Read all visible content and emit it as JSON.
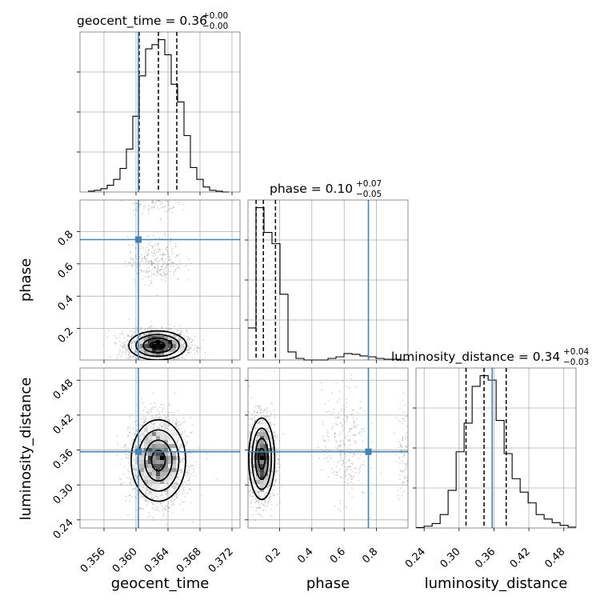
{
  "colors": {
    "truth": "#4682b4",
    "hist": "#000000",
    "grid": "#b0b0b0",
    "scatter": "#808080",
    "frame": "#808080"
  },
  "chart_data": {
    "type": "corner",
    "parameters": [
      "geocent_time",
      "phase",
      "luminosity_distance"
    ],
    "axis_labels": {
      "geocent_time": "geocent_time",
      "phase": "phase",
      "luminosity_distance": "luminosity_distance"
    },
    "titles": {
      "geocent_time": {
        "label": "geocent_time = 0.36",
        "plus": "+0.00",
        "minus": "−0.00"
      },
      "phase": {
        "label": "phase = 0.10",
        "plus": "+0.07",
        "minus": "−0.05"
      },
      "luminosity_distance": {
        "label": "luminosity_distance = 0.34",
        "plus": "+0.04",
        "minus": "−0.03"
      }
    },
    "ranges": {
      "geocent_time": [
        0.353,
        0.373
      ],
      "phase": [
        0.005,
        0.995
      ],
      "luminosity_distance": [
        0.226,
        0.501
      ]
    },
    "ticks": {
      "geocent_time": [
        "0.356",
        "0.360",
        "0.364",
        "0.368",
        "0.372"
      ],
      "phase_y": [
        "0.2",
        "0.4",
        "0.6",
        "0.8"
      ],
      "phase_x": [
        "0.2",
        "0.4",
        "0.6",
        "0.8"
      ],
      "luminosity_distance": [
        "0.24",
        "0.30",
        "0.36",
        "0.42",
        "0.48"
      ]
    },
    "tick_values": {
      "geocent_time": [
        0.356,
        0.36,
        0.364,
        0.368,
        0.372
      ],
      "phase": [
        0.2,
        0.4,
        0.6,
        0.8
      ],
      "luminosity_distance": [
        0.24,
        0.3,
        0.36,
        0.42,
        0.48
      ]
    },
    "truths": {
      "geocent_time": 0.3603,
      "phase": 0.75,
      "luminosity_distance": 0.357
    },
    "quantiles": {
      "geocent_time": [
        0.3604,
        0.3628,
        0.3651
      ],
      "phase": [
        0.055,
        0.1,
        0.175
      ],
      "luminosity_distance": [
        0.312,
        0.343,
        0.381
      ]
    },
    "histograms": {
      "geocent_time": {
        "edges": [
          0.354,
          0.3548,
          0.3556,
          0.3564,
          0.3572,
          0.358,
          0.3588,
          0.3596,
          0.3604,
          0.3612,
          0.362,
          0.3628,
          0.3636,
          0.3644,
          0.3652,
          0.366,
          0.3668,
          0.3676,
          0.3684,
          0.3692,
          0.37,
          0.3708,
          0.3716
        ],
        "counts": [
          1,
          2,
          4,
          8,
          15,
          28,
          51,
          90,
          138,
          170,
          175,
          181,
          163,
          128,
          107,
          67,
          29,
          15,
          6,
          2,
          1,
          0
        ]
      },
      "phase": {
        "edges": [
          0.005,
          0.0545,
          0.104,
          0.1535,
          0.203,
          0.2525,
          0.302,
          0.3515,
          0.401,
          0.4505,
          0.5,
          0.5495,
          0.599,
          0.6485,
          0.698,
          0.7475,
          0.797,
          0.8465,
          0.896,
          0.9455,
          0.995
        ],
        "counts": [
          40,
          190,
          159,
          145,
          82,
          10,
          2,
          0,
          0,
          0,
          2,
          4,
          8,
          7,
          5,
          4,
          2,
          1,
          1,
          0
        ]
      },
      "luminosity_distance": {
        "edges": [
          0.2262,
          0.24,
          0.2537,
          0.2675,
          0.2812,
          0.295,
          0.3087,
          0.3225,
          0.3362,
          0.35,
          0.3637,
          0.3775,
          0.3912,
          0.405,
          0.4187,
          0.4325,
          0.4462,
          0.46,
          0.4737,
          0.4875,
          0.5012
        ],
        "counts": [
          0.5,
          2,
          5,
          15,
          42,
          85,
          117,
          158,
          170,
          165,
          120,
          83,
          55,
          40,
          28,
          15,
          10,
          6,
          3,
          1
        ]
      }
    },
    "density_peaks": {
      "phase_vs_geocent_time": [
        {
          "x": 0.3627,
          "y": 0.095,
          "sx": 0.0018,
          "sy": 0.045,
          "w": 1.0
        },
        {
          "x": 0.3625,
          "y": 0.62,
          "sx": 0.0017,
          "sy": 0.07,
          "w": 0.12
        },
        {
          "x": 0.362,
          "y": 0.97,
          "sx": 0.0016,
          "sy": 0.03,
          "w": 0.04
        }
      ],
      "luminosity_distance_vs_geocent_time": [
        {
          "x": 0.3628,
          "y": 0.342,
          "sx": 0.0017,
          "sy": 0.035,
          "w": 1.0
        }
      ],
      "luminosity_distance_vs_phase": [
        {
          "x": 0.09,
          "y": 0.345,
          "sx": 0.04,
          "sy": 0.035,
          "w": 1.0
        },
        {
          "x": 0.6,
          "y": 0.37,
          "sx": 0.07,
          "sy": 0.05,
          "w": 0.12
        },
        {
          "x": 0.98,
          "y": 0.36,
          "sx": 0.03,
          "sy": 0.04,
          "w": 0.06
        }
      ]
    }
  }
}
